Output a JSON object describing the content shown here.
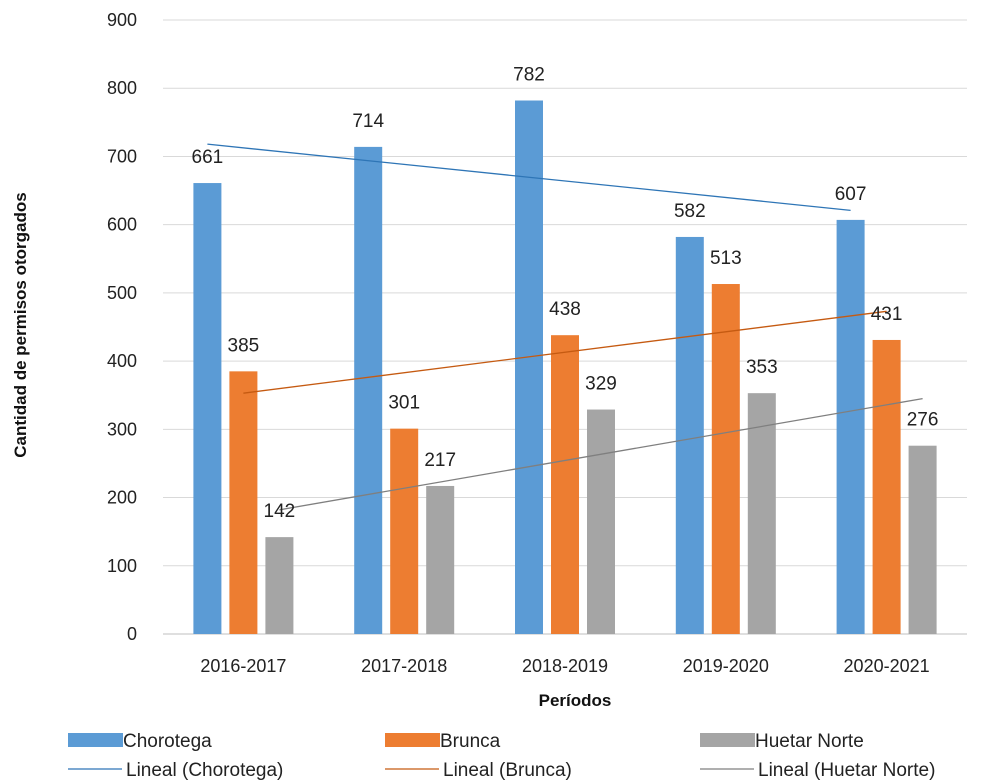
{
  "chart_data": {
    "type": "bar",
    "title": "",
    "xlabel": "Períodos",
    "ylabel": "Cantidad de permisos otorgados",
    "ylim": [
      0,
      900
    ],
    "yticks": [
      0,
      100,
      200,
      300,
      400,
      500,
      600,
      700,
      800,
      900
    ],
    "grid": true,
    "legend_position": "bottom",
    "categories": [
      "2016-2017",
      "2017-2018",
      "2018-2019",
      "2019-2020",
      "2020-2021"
    ],
    "series": [
      {
        "name": "Chorotega",
        "color": "#5B9BD5",
        "values": [
          661,
          714,
          782,
          582,
          607
        ]
      },
      {
        "name": "Brunca",
        "color": "#ED7D31",
        "values": [
          385,
          301,
          438,
          513,
          431
        ]
      },
      {
        "name": "Huetar Norte",
        "color": "#A5A5A5",
        "values": [
          142,
          217,
          329,
          353,
          276
        ]
      }
    ],
    "trendlines": [
      {
        "name": "Lineal (Chorotega)",
        "color": "#2E75B6",
        "start": 718,
        "end": 621
      },
      {
        "name": "Lineal (Brunca)",
        "color": "#C55A11",
        "start": 353,
        "end": 473
      },
      {
        "name": "Lineal (Huetar Norte)",
        "color": "#7F7F7F",
        "start": 182,
        "end": 345
      }
    ]
  }
}
